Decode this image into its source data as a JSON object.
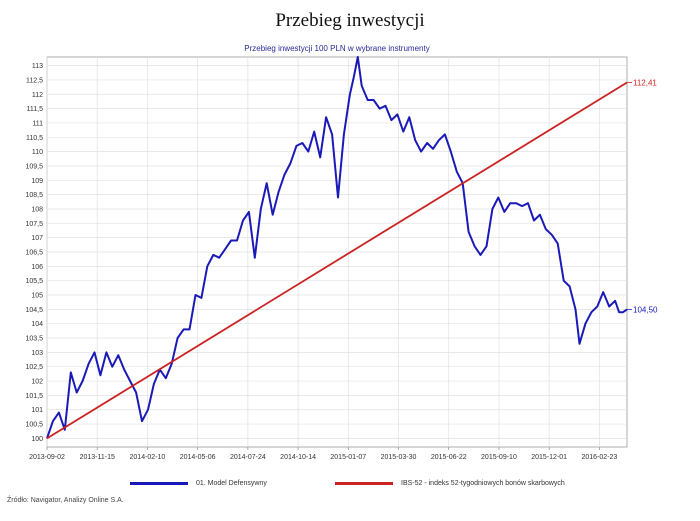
{
  "title": "Przebieg inwestycji",
  "source": "Źródło: Navigator, Analizy Online S.A.",
  "chart_data": {
    "type": "line",
    "title": "Przebieg inwestycji 100 PLN w wybrane instrumenty",
    "xlabel": "",
    "ylabel": "",
    "ylim": [
      99.7,
      113.3
    ],
    "x_ticks": [
      "2013-09-02",
      "2013-11-15",
      "2014-02-10",
      "2014-05-06",
      "2014-07-24",
      "2014-10-14",
      "2015-01-07",
      "2015-03-30",
      "2015-06-22",
      "2015-09-10",
      "2015-12-01",
      "2016-02-23"
    ],
    "y_ticks": [
      "100",
      "100,5",
      "101",
      "101,5",
      "102",
      "102,5",
      "103",
      "103,5",
      "104",
      "104,5",
      "105",
      "105,5",
      "106",
      "106,5",
      "107",
      "107,5",
      "108",
      "108,5",
      "109",
      "109,5",
      "110",
      "110,5",
      "111",
      "111,5",
      "112",
      "112,5",
      "113"
    ],
    "grid": true,
    "legend_position": "bottom",
    "series": [
      {
        "name": "01. Model Defensywny",
        "color": "#1a1ab8",
        "end_label": "104,50",
        "points": [
          [
            0,
            100
          ],
          [
            3,
            100.6
          ],
          [
            6,
            100.9
          ],
          [
            9,
            100.3
          ],
          [
            12,
            102.3
          ],
          [
            15,
            101.6
          ],
          [
            18,
            102.0
          ],
          [
            21,
            102.6
          ],
          [
            24,
            103.0
          ],
          [
            27,
            102.2
          ],
          [
            30,
            103.0
          ],
          [
            33,
            102.5
          ],
          [
            36,
            102.9
          ],
          [
            39,
            102.4
          ],
          [
            42,
            102.0
          ],
          [
            45,
            101.6
          ],
          [
            48,
            100.6
          ],
          [
            51,
            101.0
          ],
          [
            54,
            101.9
          ],
          [
            57,
            102.4
          ],
          [
            60,
            102.1
          ],
          [
            63,
            102.6
          ],
          [
            66,
            103.5
          ],
          [
            69,
            103.8
          ],
          [
            72,
            103.8
          ],
          [
            75,
            105.0
          ],
          [
            78,
            104.9
          ],
          [
            81,
            106.0
          ],
          [
            84,
            106.4
          ],
          [
            87,
            106.3
          ],
          [
            90,
            106.6
          ],
          [
            93,
            106.9
          ],
          [
            96,
            106.9
          ],
          [
            99,
            107.6
          ],
          [
            102,
            107.9
          ],
          [
            105,
            106.3
          ],
          [
            108,
            108.0
          ],
          [
            111,
            108.9
          ],
          [
            114,
            107.8
          ],
          [
            117,
            108.6
          ],
          [
            120,
            109.2
          ],
          [
            123,
            109.6
          ],
          [
            126,
            110.2
          ],
          [
            129,
            110.3
          ],
          [
            132,
            110.0
          ],
          [
            135,
            110.7
          ],
          [
            138,
            109.8
          ],
          [
            141,
            111.2
          ],
          [
            144,
            110.6
          ],
          [
            147,
            108.4
          ],
          [
            150,
            110.6
          ],
          [
            153,
            112.0
          ],
          [
            155,
            112.6
          ],
          [
            157,
            113.3
          ],
          [
            159,
            112.3
          ],
          [
            162,
            111.8
          ],
          [
            165,
            111.8
          ],
          [
            168,
            111.5
          ],
          [
            171,
            111.6
          ],
          [
            174,
            111.1
          ],
          [
            177,
            111.3
          ],
          [
            180,
            110.7
          ],
          [
            183,
            111.2
          ],
          [
            186,
            110.4
          ],
          [
            189,
            110.0
          ],
          [
            192,
            110.3
          ],
          [
            195,
            110.1
          ],
          [
            198,
            110.4
          ],
          [
            201,
            110.6
          ],
          [
            204,
            110.0
          ],
          [
            207,
            109.3
          ],
          [
            210,
            108.9
          ],
          [
            213,
            107.2
          ],
          [
            216,
            106.7
          ],
          [
            219,
            106.4
          ],
          [
            222,
            106.7
          ],
          [
            225,
            108.0
          ],
          [
            228,
            108.4
          ],
          [
            231,
            107.9
          ],
          [
            234,
            108.2
          ],
          [
            237,
            108.2
          ],
          [
            240,
            108.1
          ],
          [
            243,
            108.2
          ],
          [
            246,
            107.6
          ],
          [
            249,
            107.8
          ],
          [
            252,
            107.3
          ],
          [
            255,
            107.1
          ],
          [
            258,
            106.8
          ],
          [
            261,
            105.5
          ],
          [
            264,
            105.3
          ],
          [
            267,
            104.5
          ],
          [
            269,
            103.3
          ],
          [
            272,
            104.0
          ],
          [
            275,
            104.4
          ],
          [
            278,
            104.6
          ],
          [
            281,
            105.1
          ],
          [
            284,
            104.6
          ],
          [
            287,
            104.8
          ],
          [
            289,
            104.4
          ],
          [
            291,
            104.4
          ],
          [
            293,
            104.5
          ]
        ]
      },
      {
        "name": "IBS-52 - indeks 52-tygodniowych bonów skarbowych",
        "color": "#cc2222",
        "end_label": "112,41",
        "points": [
          [
            0,
            100
          ],
          [
            293,
            112.41
          ]
        ]
      }
    ]
  },
  "legend_items": [
    {
      "label": "01. Model Defensywny",
      "color": "#1a1ab8"
    },
    {
      "label": "IBS-52 - indeks 52-tygodniowych bonów skarbowych",
      "color": "#cc2222"
    }
  ]
}
